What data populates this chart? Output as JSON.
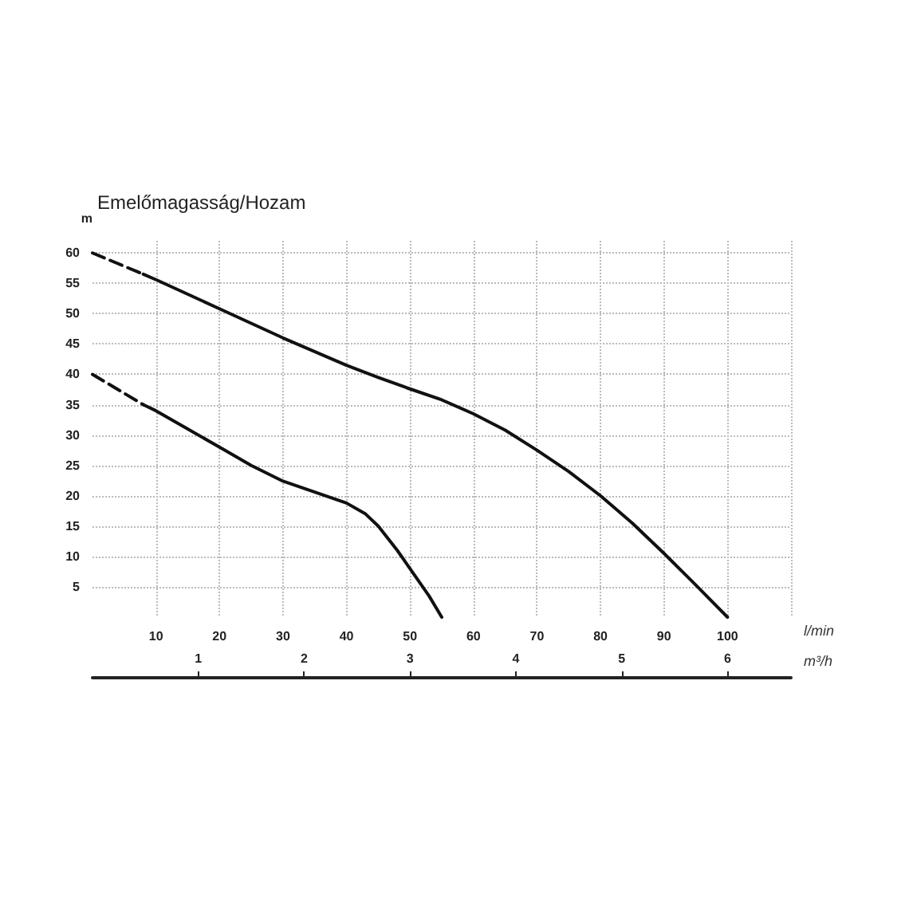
{
  "chart_data": {
    "type": "line",
    "title": "Emelőmagasság/Hozam",
    "ylabel": "m",
    "xlabel": "l/min",
    "x2label": "m³/h",
    "xlim": [
      0,
      110
    ],
    "xticks": [
      10,
      20,
      30,
      40,
      50,
      60,
      70,
      80,
      90,
      100,
      {
        "value": 110,
        "label": null
      }
    ],
    "ylim": [
      0,
      62
    ],
    "yticks": [
      5,
      10,
      15,
      20,
      25,
      30,
      35,
      40,
      45,
      50,
      55,
      60
    ],
    "x2lim": [
      0,
      6.6
    ],
    "x2ticks": [
      1,
      2,
      3,
      4,
      5,
      6
    ],
    "grid": true,
    "marker": "none",
    "series": [
      {
        "color": "#111111",
        "line_style": "dashed",
        "x": [
          0,
          8
        ],
        "values": [
          60,
          56.5
        ]
      },
      {
        "color": "#111111",
        "line_style": "solid",
        "x": [
          8,
          10,
          20,
          30,
          40,
          45,
          50,
          55,
          60,
          65,
          70,
          75,
          80,
          85,
          90,
          95,
          100
        ],
        "values": [
          56.5,
          55.6,
          50.8,
          46,
          41.5,
          39.5,
          37.6,
          35.8,
          33.5,
          30.8,
          27.5,
          24,
          20,
          15.5,
          10.5,
          5.3,
          0
        ]
      },
      {
        "color": "#111111",
        "line_style": "dashed",
        "x": [
          0,
          8
        ],
        "values": [
          40,
          35
        ]
      },
      {
        "color": "#111111",
        "line_style": "solid",
        "x": [
          8,
          10,
          15,
          20,
          25,
          30,
          35,
          40,
          43,
          45,
          48,
          50,
          53,
          55
        ],
        "values": [
          35,
          34,
          31,
          28,
          25,
          22.4,
          20.6,
          18.8,
          17,
          15,
          11,
          8,
          3.5,
          0
        ]
      }
    ]
  }
}
